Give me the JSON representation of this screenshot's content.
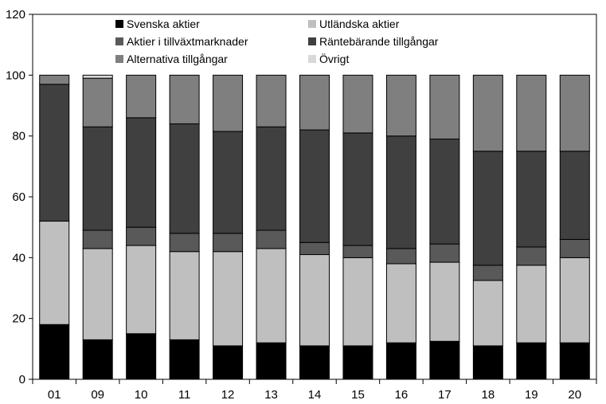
{
  "chart_data": {
    "type": "bar",
    "stacked": true,
    "categories": [
      "01",
      "09",
      "10",
      "11",
      "12",
      "13",
      "14",
      "15",
      "16",
      "17",
      "18",
      "19",
      "20"
    ],
    "ylim": [
      0,
      120
    ],
    "yticks": [
      0,
      20,
      40,
      60,
      80,
      100,
      120
    ],
    "legend_position": "top",
    "grid": false,
    "series": [
      {
        "name": "Svenska aktier",
        "color": "#000000",
        "values": [
          18,
          13,
          15,
          13,
          11,
          12,
          11,
          11,
          12,
          12.5,
          11,
          12,
          12
        ]
      },
      {
        "name": "Utländska aktier",
        "color": "#bfbfbf",
        "values": [
          34,
          30,
          29,
          29,
          31,
          31,
          30,
          29,
          26,
          26,
          21.5,
          25.5,
          28
        ]
      },
      {
        "name": "Aktier i tillväxtmarknader",
        "color": "#595959",
        "values": [
          0,
          6,
          6,
          6,
          6,
          6,
          4,
          4,
          5,
          6,
          5,
          6,
          6
        ]
      },
      {
        "name": "Räntebärande tillgångar",
        "color": "#404040",
        "values": [
          45,
          34,
          36,
          36,
          33.5,
          34,
          37,
          37,
          37,
          34.5,
          37.5,
          31.5,
          29
        ]
      },
      {
        "name": "Alternativa tillgångar",
        "color": "#7f7f7f",
        "values": [
          3,
          16,
          14,
          16,
          18.5,
          17,
          18,
          19,
          20,
          21,
          25,
          25,
          25
        ]
      },
      {
        "name": "Övrigt",
        "color": "#d9d9d9",
        "values": [
          0,
          1,
          0,
          0,
          0,
          0,
          0,
          0,
          0,
          0,
          0,
          0,
          0
        ]
      }
    ]
  }
}
